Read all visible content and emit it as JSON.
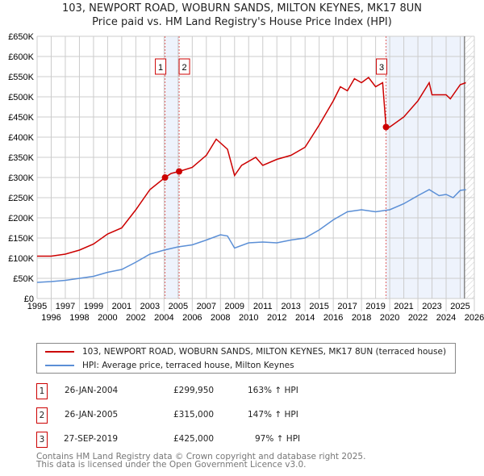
{
  "chart_data": {
    "type": "line",
    "title": "103, NEWPORT ROAD, WOBURN SANDS, MILTON KEYNES, MK17 8UN",
    "subtitle": "Price paid vs. HM Land Registry's House Price Index (HPI)",
    "xlim": [
      1995,
      2026
    ],
    "ylim": [
      0,
      650000
    ],
    "y_ticks": [
      {
        "v": 0,
        "l": "£0"
      },
      {
        "v": 50000,
        "l": "£50K"
      },
      {
        "v": 100000,
        "l": "£100K"
      },
      {
        "v": 150000,
        "l": "£150K"
      },
      {
        "v": 200000,
        "l": "£200K"
      },
      {
        "v": 250000,
        "l": "£250K"
      },
      {
        "v": 300000,
        "l": "£300K"
      },
      {
        "v": 350000,
        "l": "£350K"
      },
      {
        "v": 400000,
        "l": "£400K"
      },
      {
        "v": 450000,
        "l": "£450K"
      },
      {
        "v": 500000,
        "l": "£500K"
      },
      {
        "v": 550000,
        "l": "£550K"
      },
      {
        "v": 600000,
        "l": "£600K"
      },
      {
        "v": 650000,
        "l": "£650K"
      }
    ],
    "x_ticks": [
      "1995",
      "1996",
      "1997",
      "1998",
      "1999",
      "2000",
      "2001",
      "2002",
      "2003",
      "2004",
      "2005",
      "2006",
      "2007",
      "2008",
      "2009",
      "2010",
      "2011",
      "2012",
      "2013",
      "2014",
      "2015",
      "2016",
      "2017",
      "2018",
      "2019",
      "2020",
      "2021",
      "2022",
      "2023",
      "2024",
      "2025",
      "2026"
    ],
    "series": [
      {
        "name": "103, NEWPORT ROAD, WOBURN SANDS, MILTON KEYNES, MK17 8UN (terraced house)",
        "color": "#cc0000",
        "x": [
          1995,
          1996,
          1997,
          1998,
          1999,
          2000,
          2001,
          2002,
          2003,
          2004.07,
          2004.5,
          2005.07,
          2006,
          2007,
          2007.7,
          2008.5,
          2009,
          2009.5,
          2010.5,
          2011,
          2012,
          2013,
          2014,
          2015,
          2016,
          2016.5,
          2017,
          2017.5,
          2018,
          2018.5,
          2019,
          2019.5,
          2019.74,
          2020,
          2021,
          2022,
          2022.8,
          2023,
          2024,
          2024.3,
          2025,
          2025.4
        ],
        "y": [
          105000,
          105000,
          110000,
          120000,
          135000,
          160000,
          175000,
          220000,
          270000,
          299950,
          310000,
          315000,
          325000,
          355000,
          395000,
          370000,
          305000,
          330000,
          350000,
          330000,
          345000,
          355000,
          375000,
          430000,
          490000,
          525000,
          515000,
          545000,
          535000,
          548000,
          525000,
          535000,
          425000,
          425000,
          450000,
          490000,
          535000,
          505000,
          505000,
          495000,
          530000,
          535000
        ]
      },
      {
        "name": "HPI: Average price, terraced house, Milton Keynes",
        "color": "#5b8fd6",
        "x": [
          1995,
          1996,
          1997,
          1998,
          1999,
          2000,
          2001,
          2002,
          2003,
          2004,
          2005,
          2006,
          2007,
          2008,
          2008.5,
          2009,
          2010,
          2011,
          2012,
          2013,
          2014,
          2015,
          2016,
          2017,
          2018,
          2019,
          2020,
          2021,
          2022,
          2022.8,
          2023.5,
          2024,
          2024.5,
          2025,
          2025.4
        ],
        "y": [
          40000,
          42000,
          45000,
          50000,
          55000,
          65000,
          72000,
          90000,
          110000,
          120000,
          128000,
          133000,
          145000,
          158000,
          155000,
          125000,
          138000,
          140000,
          138000,
          145000,
          150000,
          170000,
          195000,
          215000,
          220000,
          215000,
          220000,
          235000,
          255000,
          270000,
          255000,
          258000,
          250000,
          268000,
          270000
        ]
      }
    ],
    "sales": [
      {
        "n": "1",
        "x": 2004.07,
        "y": 299950,
        "date": "26-JAN-2004",
        "price": "£299,950",
        "hpi": "163% ↑ HPI"
      },
      {
        "n": "2",
        "x": 2005.07,
        "y": 315000,
        "date": "26-JAN-2005",
        "price": "£315,000",
        "hpi": "147% ↑ HPI"
      },
      {
        "n": "3",
        "x": 2019.74,
        "y": 425000,
        "date": "27-SEP-2019",
        "price": "£425,000",
        "hpi": "97% ↑ HPI"
      }
    ]
  },
  "footer": [
    "Contains HM Land Registry data © Crown copyright and database right 2025.",
    "This data is licensed under the Open Government Licence v3.0."
  ]
}
